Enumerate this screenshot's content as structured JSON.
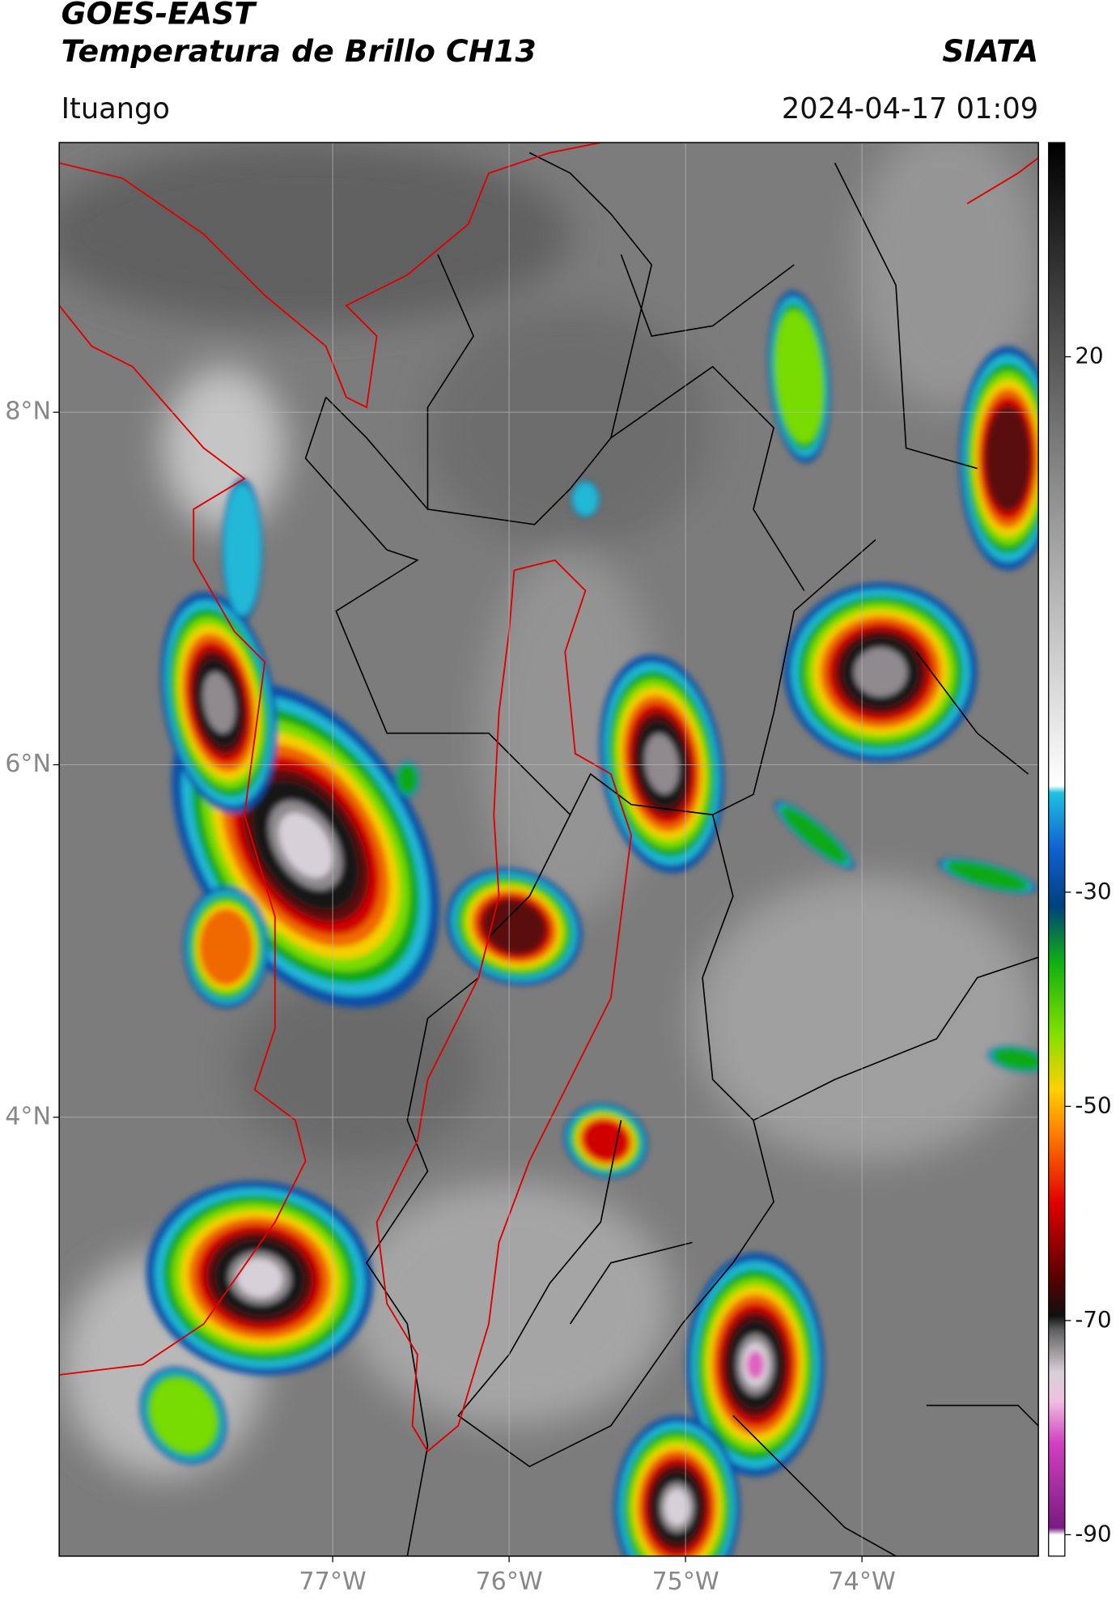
{
  "header": {
    "title": "GOES-EAST",
    "subtitle": "Temperatura de Brillo CH13",
    "agency": "SIATA",
    "location": "Ituango",
    "datetime": "2024-04-17 01:09"
  },
  "map": {
    "lon_range": [
      -78.55,
      -73.0
    ],
    "lat_range": [
      1.51,
      9.53
    ],
    "lon_ticks": [
      {
        "value": -77,
        "label": "77°W"
      },
      {
        "value": -76,
        "label": "76°W"
      },
      {
        "value": -75,
        "label": "75°W"
      },
      {
        "value": -74,
        "label": "74°W"
      }
    ],
    "lat_ticks": [
      {
        "value": 8,
        "label": "8°N"
      },
      {
        "value": 6,
        "label": "6°N"
      },
      {
        "value": 4,
        "label": "4°N"
      }
    ]
  },
  "colorbar": {
    "range": [
      -92,
      40
    ],
    "ticks": [
      20,
      -30,
      -50,
      -70,
      -90
    ]
  }
}
